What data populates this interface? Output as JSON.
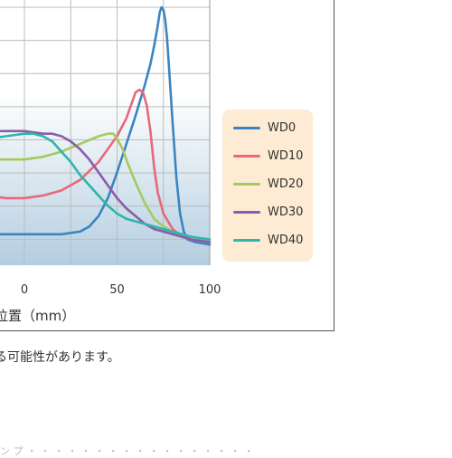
{
  "chart_data": {
    "type": "line",
    "xlabel": "位置（mm）",
    "ylabel": "",
    "xlim": [
      -27,
      100
    ],
    "ylim": [
      0,
      100
    ],
    "x_ticks": [
      "0",
      "50",
      "100"
    ],
    "grid": true,
    "legend_position": "right",
    "series": [
      {
        "name": "WD0",
        "color": "#3a85c1",
        "points": [
          [
            -30,
            12
          ],
          [
            20,
            12
          ],
          [
            30,
            13
          ],
          [
            35,
            15
          ],
          [
            40,
            19
          ],
          [
            45,
            26
          ],
          [
            50,
            36
          ],
          [
            55,
            47
          ],
          [
            60,
            58
          ],
          [
            65,
            70
          ],
          [
            68,
            78
          ],
          [
            70,
            85
          ],
          [
            72,
            93
          ],
          [
            73,
            98
          ],
          [
            74,
            100
          ],
          [
            75,
            99
          ],
          [
            76,
            95
          ],
          [
            77,
            88
          ],
          [
            78,
            77
          ],
          [
            80,
            55
          ],
          [
            82,
            34
          ],
          [
            84,
            20
          ],
          [
            86,
            13
          ],
          [
            88,
            10
          ],
          [
            92,
            9
          ],
          [
            100,
            8
          ]
        ]
      },
      {
        "name": "WD10",
        "color": "#e8687a",
        "points": [
          [
            -30,
            28
          ],
          [
            -20,
            27
          ],
          [
            -10,
            26
          ],
          [
            0,
            26
          ],
          [
            10,
            27
          ],
          [
            20,
            29
          ],
          [
            30,
            33
          ],
          [
            40,
            40
          ],
          [
            50,
            50
          ],
          [
            55,
            57
          ],
          [
            58,
            63
          ],
          [
            60,
            67
          ],
          [
            62,
            68
          ],
          [
            64,
            67
          ],
          [
            66,
            62
          ],
          [
            68,
            52
          ],
          [
            70,
            38
          ],
          [
            72,
            28
          ],
          [
            75,
            20
          ],
          [
            80,
            14
          ],
          [
            85,
            11
          ],
          [
            90,
            10
          ],
          [
            100,
            9
          ]
        ]
      },
      {
        "name": "WD20",
        "color": "#a5ca5c",
        "points": [
          [
            -30,
            41
          ],
          [
            -20,
            41
          ],
          [
            -10,
            41
          ],
          [
            0,
            41
          ],
          [
            10,
            42
          ],
          [
            20,
            44
          ],
          [
            30,
            47
          ],
          [
            40,
            50
          ],
          [
            45,
            51
          ],
          [
            48,
            51
          ],
          [
            50,
            49
          ],
          [
            53,
            45
          ],
          [
            56,
            39
          ],
          [
            60,
            32
          ],
          [
            65,
            24
          ],
          [
            70,
            18
          ],
          [
            75,
            15
          ],
          [
            80,
            13
          ],
          [
            85,
            11
          ],
          [
            90,
            10
          ],
          [
            100,
            9
          ]
        ]
      },
      {
        "name": "WD30",
        "color": "#8c5bab",
        "points": [
          [
            -30,
            52
          ],
          [
            -20,
            52
          ],
          [
            -10,
            52
          ],
          [
            0,
            52
          ],
          [
            10,
            51
          ],
          [
            15,
            51
          ],
          [
            20,
            50
          ],
          [
            25,
            48
          ],
          [
            30,
            45
          ],
          [
            35,
            41
          ],
          [
            40,
            36
          ],
          [
            45,
            31
          ],
          [
            50,
            26
          ],
          [
            55,
            22
          ],
          [
            60,
            19
          ],
          [
            65,
            16
          ],
          [
            70,
            14
          ],
          [
            75,
            13
          ],
          [
            80,
            12
          ],
          [
            85,
            11
          ],
          [
            90,
            10
          ],
          [
            100,
            9
          ]
        ]
      },
      {
        "name": "WD40",
        "color": "#2fb5aa",
        "points": [
          [
            -30,
            47
          ],
          [
            -20,
            49
          ],
          [
            -10,
            50
          ],
          [
            0,
            51
          ],
          [
            5,
            51
          ],
          [
            10,
            50
          ],
          [
            15,
            48
          ],
          [
            20,
            44
          ],
          [
            25,
            40
          ],
          [
            30,
            35
          ],
          [
            35,
            31
          ],
          [
            40,
            27
          ],
          [
            45,
            23
          ],
          [
            50,
            20
          ],
          [
            55,
            18
          ],
          [
            60,
            17
          ],
          [
            65,
            16
          ],
          [
            70,
            15
          ],
          [
            75,
            14
          ],
          [
            80,
            13
          ],
          [
            85,
            12
          ],
          [
            90,
            11
          ],
          [
            100,
            10
          ]
        ]
      }
    ]
  },
  "footnote": "る可能性があります。",
  "bottom_fragment": "ンプ・・・・・・・・・・・・・・・・・"
}
